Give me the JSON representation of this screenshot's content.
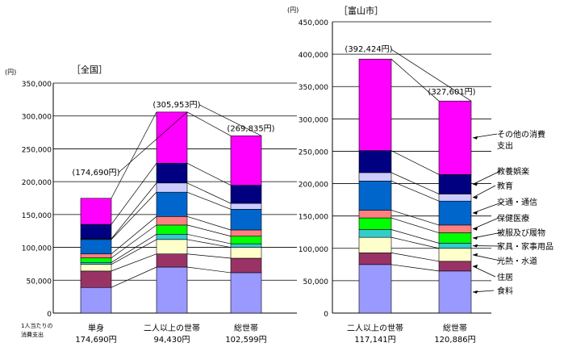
{
  "chart_data": [
    {
      "type": "bar",
      "stacked": true,
      "panel_label": "［全国］",
      "yunit": "(円)",
      "ylim": [
        0,
        350000
      ],
      "yticks": [
        "0",
        "50,000",
        "100,000",
        "150,000",
        "200,000",
        "250,000",
        "300,000",
        "350,000"
      ],
      "row_label": [
        "1人当たりの",
        "消費支出"
      ],
      "categories": [
        "単身",
        "二人以上の世帯",
        "総世帯"
      ],
      "category_values": [
        "174,690円",
        "94,430円",
        "102,599円"
      ],
      "totals": [
        174690,
        305953,
        269835
      ],
      "total_labels": [
        "(174,690円)",
        "(305,953円)",
        "(269,835円)"
      ],
      "series": [
        {
          "name": "食料",
          "color": "#9999ff",
          "values": [
            39000,
            70000,
            61500
          ]
        },
        {
          "name": "住居",
          "color": "#993366",
          "values": [
            25000,
            20000,
            22000
          ]
        },
        {
          "name": "光熱・水道",
          "color": "#ffffcc",
          "values": [
            10000,
            22000,
            16500
          ]
        },
        {
          "name": "家具・家事用品",
          "color": "#33cccc",
          "values": [
            3000,
            8000,
            5500
          ]
        },
        {
          "name": "被服及び履物",
          "color": "#00ff00",
          "values": [
            7000,
            14000,
            11500
          ]
        },
        {
          "name": "保健医療",
          "color": "#ff8080",
          "values": [
            6000,
            13000,
            9500
          ]
        },
        {
          "name": "交通・通信",
          "color": "#0066cc",
          "values": [
            22000,
            37000,
            31500
          ]
        },
        {
          "name": "教育",
          "color": "#ccccff",
          "values": [
            1000,
            14000,
            9000
          ]
        },
        {
          "name": "教養娯楽",
          "color": "#000080",
          "values": [
            22000,
            30000,
            27500
          ]
        },
        {
          "name": "その他の消費支出",
          "color": "#ff00ff",
          "values": [
            39690,
            77953,
            75335
          ]
        }
      ]
    },
    {
      "type": "bar",
      "stacked": true,
      "panel_label": "［富山市］",
      "yunit": "(円)",
      "ylim": [
        0,
        450000
      ],
      "yticks": [
        "0",
        "50,000",
        "100,000",
        "150,000",
        "200,000",
        "250,000",
        "300,000",
        "350,000",
        "400,000",
        "450,000"
      ],
      "categories": [
        "二人以上の世帯",
        "総世帯"
      ],
      "category_values": [
        "117,141円",
        "120,886円"
      ],
      "totals": [
        392424,
        327601
      ],
      "total_labels": [
        "(392,424円)",
        "(327,601円)"
      ],
      "series": [
        {
          "name": "食料",
          "color": "#9999ff",
          "values": [
            75000,
            65000
          ]
        },
        {
          "name": "住居",
          "color": "#993366",
          "values": [
            18000,
            15000
          ]
        },
        {
          "name": "光熱・水道",
          "color": "#ffffcc",
          "values": [
            24000,
            20000
          ]
        },
        {
          "name": "家具・家事用品",
          "color": "#33cccc",
          "values": [
            12000,
            8000
          ]
        },
        {
          "name": "被服及び履物",
          "color": "#00ff00",
          "values": [
            18000,
            16000
          ]
        },
        {
          "name": "保健医療",
          "color": "#ff8080",
          "values": [
            12000,
            12000
          ]
        },
        {
          "name": "交通・通信",
          "color": "#0066cc",
          "values": [
            45000,
            37000
          ]
        },
        {
          "name": "教育",
          "color": "#ccccff",
          "values": [
            13000,
            11000
          ]
        },
        {
          "name": "教養娯楽",
          "color": "#000080",
          "values": [
            34000,
            30000
          ]
        },
        {
          "name": "その他の消費支出",
          "color": "#ff00ff",
          "values": [
            141424,
            113601
          ]
        }
      ],
      "legend_labels": [
        {
          "series": 9,
          "lines": [
            "その他の消費",
            "支出"
          ]
        },
        {
          "series": 8,
          "lines": [
            "教養娯楽"
          ]
        },
        {
          "series": 7,
          "lines": [
            "教育"
          ]
        },
        {
          "series": 6,
          "lines": [
            "交通・通信"
          ]
        },
        {
          "series": 5,
          "lines": [
            "保健医療"
          ]
        },
        {
          "series": 4,
          "lines": [
            "被服及び履物"
          ]
        },
        {
          "series": 3,
          "lines": [
            "家具・家事用品"
          ]
        },
        {
          "series": 2,
          "lines": [
            "光熱・水道"
          ]
        },
        {
          "series": 1,
          "lines": [
            "住居"
          ]
        },
        {
          "series": 0,
          "lines": [
            "食料"
          ]
        }
      ]
    }
  ]
}
